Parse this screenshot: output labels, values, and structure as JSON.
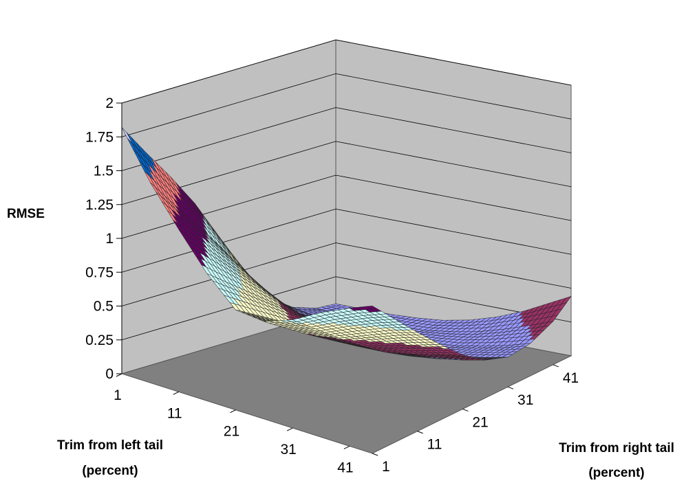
{
  "chart_data": {
    "type": "surface",
    "zlabel": "RMSE",
    "xlabel_lines": [
      "Trim from left tail",
      "(percent)"
    ],
    "ylabel_lines": [
      "Trim from right tail",
      "(percent)"
    ],
    "z_ticks": [
      "0",
      "0.25",
      "0.5",
      "0.75",
      "1",
      "1.25",
      "1.5",
      "1.75",
      "2"
    ],
    "zlim": [
      0,
      2
    ],
    "x_ticks": [
      "1",
      "11",
      "21",
      "31",
      "41"
    ],
    "y_ticks": [
      "1",
      "11",
      "21",
      "31",
      "41"
    ],
    "x_range": [
      1,
      45
    ],
    "y_range": [
      1,
      45
    ],
    "x_samples": [
      1,
      6,
      11,
      16,
      21,
      26,
      31,
      36,
      41,
      45
    ],
    "y_samples": [
      1,
      6,
      11,
      16,
      21,
      26,
      31,
      36,
      41,
      45
    ],
    "z_values": [
      [
        1.82,
        1.58,
        1.35,
        1.1,
        0.8,
        0.48,
        0.25,
        0.12,
        0.06,
        0.05
      ],
      [
        1.48,
        1.26,
        1.05,
        0.82,
        0.58,
        0.34,
        0.18,
        0.09,
        0.05,
        0.05
      ],
      [
        1.2,
        1.02,
        0.84,
        0.66,
        0.46,
        0.28,
        0.15,
        0.08,
        0.05,
        0.05
      ],
      [
        0.94,
        0.8,
        0.66,
        0.52,
        0.37,
        0.23,
        0.13,
        0.07,
        0.05,
        0.06
      ],
      [
        0.74,
        0.63,
        0.52,
        0.41,
        0.3,
        0.19,
        0.11,
        0.07,
        0.06,
        0.08
      ],
      [
        0.72,
        0.6,
        0.48,
        0.37,
        0.26,
        0.16,
        0.1,
        0.08,
        0.09,
        0.12
      ],
      [
        0.8,
        0.66,
        0.52,
        0.39,
        0.27,
        0.17,
        0.11,
        0.1,
        0.13,
        0.18
      ],
      [
        0.92,
        0.76,
        0.6,
        0.45,
        0.31,
        0.2,
        0.14,
        0.14,
        0.19,
        0.26
      ],
      [
        1.02,
        0.85,
        0.68,
        0.51,
        0.36,
        0.24,
        0.18,
        0.19,
        0.26,
        0.36
      ],
      [
        1.09,
        0.91,
        0.73,
        0.56,
        0.4,
        0.28,
        0.22,
        0.24,
        0.32,
        0.44
      ]
    ],
    "band_colors": [
      "#9999ff",
      "#993366",
      "#ffffcc",
      "#ccffff",
      "#660066",
      "#ff8080",
      "#0066cc",
      "#ccccff"
    ],
    "band_step": 0.25,
    "wall_color": "#c0c0c0",
    "floor_color": "#808080",
    "grid": true,
    "legend": "none"
  }
}
